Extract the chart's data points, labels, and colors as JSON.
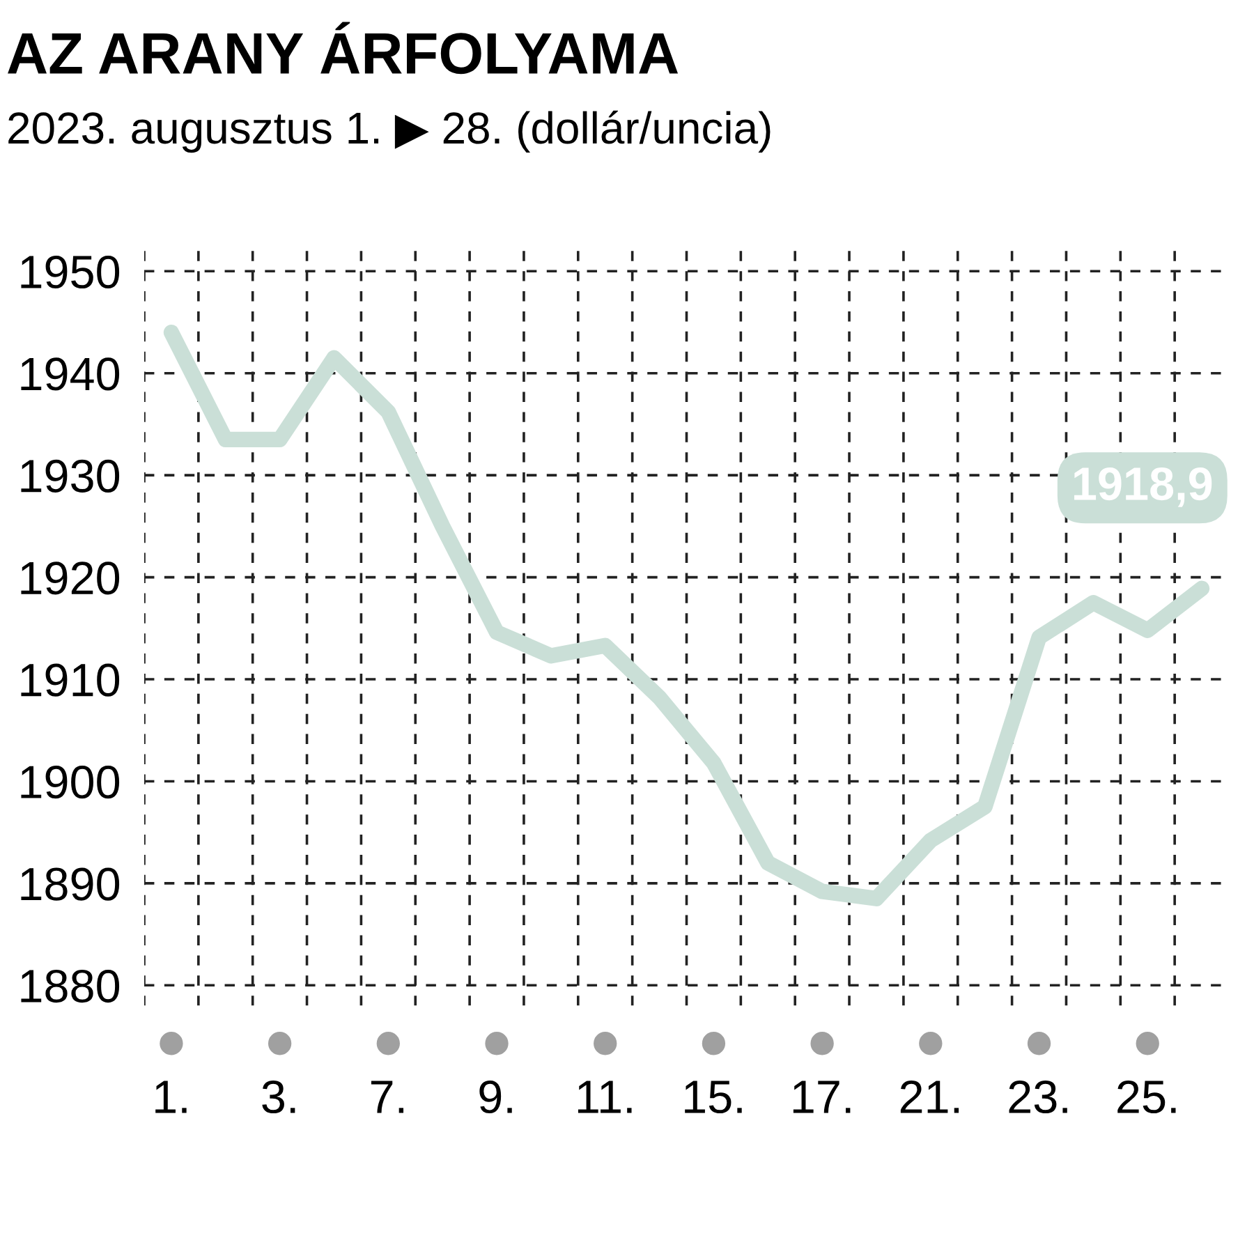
{
  "chart_data": {
    "type": "line",
    "title": "AZ ARANY ÁRFOLYAMA",
    "subtitle": "2023. augusztus 1. ▶ 28. (dollár/uncia)",
    "categories": [
      "1.",
      null,
      "3.",
      null,
      "7.",
      null,
      "9.",
      null,
      "11.",
      null,
      "15.",
      null,
      "17.",
      null,
      "21.",
      null,
      "23.",
      null,
      "25.",
      null
    ],
    "series": [
      {
        "color": "#cadfd7",
        "values": [
          1944.0,
          1933.5,
          1933.5,
          1941.5,
          1936.2,
          1925.0,
          1914.6,
          1912.3,
          1913.3,
          1908.2,
          1901.8,
          1892.0,
          1889.2,
          1888.5,
          1894.2,
          1897.5,
          1914.1,
          1917.5,
          1914.8,
          1918.9
        ],
        "value_labels": [
          null,
          null,
          null,
          null,
          null,
          null,
          null,
          null,
          null,
          null,
          null,
          null,
          null,
          null,
          null,
          null,
          null,
          null,
          null,
          "1918,9"
        ]
      }
    ],
    "ylim": [
      1878,
      1952
    ],
    "yticks": [
      1880,
      1890,
      1900,
      1910,
      1920,
      1930,
      1940,
      1950
    ],
    "grid": true,
    "line_style": "solid"
  }
}
